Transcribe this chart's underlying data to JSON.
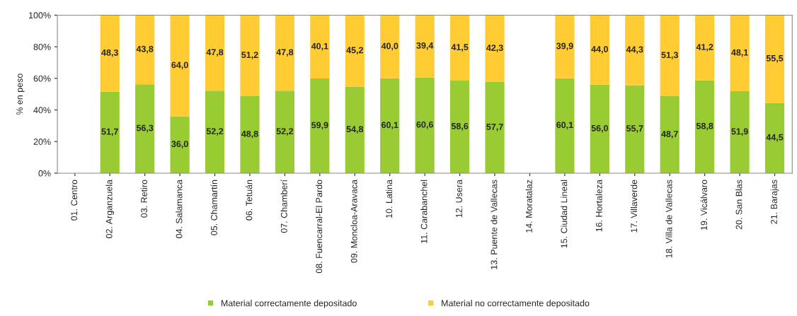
{
  "chart_data": {
    "type": "bar",
    "stacked": true,
    "ylabel": "% en peso",
    "categories": [
      "01. Centro",
      "02. Arganzuela",
      "03. Retiro",
      "04. Salamanca",
      "05. Chamartín",
      "06. Tetuán",
      "07. Chamberí",
      "08. Fuencarral-El Pardo",
      "09. Moncloa-Aravaca",
      "10. Latina",
      "11. Carabanchel",
      "12. Usera",
      "13. Puente de Vallecas",
      "14. Moratalaz",
      "15. Ciudad Lineal",
      "16. Hortaleza",
      "17. Villaverde",
      "18. Villa de Vallecas",
      "19. Vicálvaro",
      "20. San Blas",
      "21. Barajas"
    ],
    "series": [
      {
        "name": "Material correctamente depositado",
        "color": "#99cc33",
        "values": [
          null,
          51.7,
          56.3,
          36.0,
          52.2,
          48.8,
          52.2,
          59.9,
          54.8,
          60.1,
          60.6,
          58.6,
          57.7,
          null,
          60.1,
          56.0,
          55.7,
          48.7,
          58.8,
          51.9,
          44.5
        ],
        "value_labels": [
          null,
          "51,7",
          "56,3",
          "36,0",
          "52,2",
          "48,8",
          "52,2",
          "59,9",
          "54,8",
          "60,1",
          "60,6",
          "58,6",
          "57,7",
          null,
          "60,1",
          "56,0",
          "55,7",
          "48,7",
          "58,8",
          "51,9",
          "44,5"
        ]
      },
      {
        "name": "Material no correctamente depositado",
        "color": "#ffcc33",
        "values": [
          null,
          48.3,
          43.8,
          64.0,
          47.8,
          51.2,
          47.8,
          40.1,
          45.2,
          40.0,
          39.4,
          41.5,
          42.3,
          null,
          39.9,
          44.0,
          44.3,
          51.3,
          41.2,
          48.1,
          55.5
        ],
        "value_labels": [
          null,
          "48,3",
          "43,8",
          "64,0",
          "47,8",
          "51,2",
          "47,8",
          "40,1",
          "45,2",
          "40,0",
          "39,4",
          "41,5",
          "42,3",
          null,
          "39,9",
          "44,0",
          "44,3",
          "51,3",
          "41,2",
          "48,1",
          "55,5"
        ]
      }
    ],
    "ylim": [
      0,
      100
    ],
    "yticks": [
      {
        "value": 0,
        "label": "0%"
      },
      {
        "value": 20,
        "label": "20%"
      },
      {
        "value": 40,
        "label": "40%"
      },
      {
        "value": 60,
        "label": "60%"
      },
      {
        "value": 80,
        "label": "80%"
      },
      {
        "value": 100,
        "label": "100%"
      }
    ],
    "grid": false,
    "legend": "bottom"
  }
}
